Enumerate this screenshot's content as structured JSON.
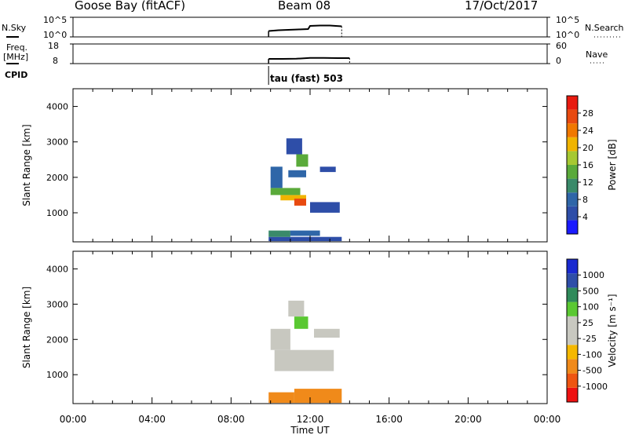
{
  "header": {
    "station": "Goose Bay (fitACF)",
    "beam": "Beam 08",
    "date": "17/Oct/2017"
  },
  "aux": {
    "nsky_label": "N.Sky",
    "nsky_tick_hi": "10^5",
    "nsky_tick_lo": "10^0",
    "nsearch_label": "N.Search",
    "freq_label_1": "Freq.",
    "freq_label_2": "[MHz]",
    "freq_ticks": [
      "18",
      "8"
    ],
    "nave_label": "Nave",
    "nave_ticks": [
      "60",
      "0"
    ],
    "cpid_label": "CPID",
    "cpid_value": "tau (fast) 503"
  },
  "colors": {
    "power_scale": [
      "#1a1aff",
      "#2e4ea8",
      "#2f66a8",
      "#3a8a6a",
      "#5aaa3a",
      "#a6c832",
      "#f0b400",
      "#f07800",
      "#e84a10",
      "#e81a10"
    ],
    "velocity_scale": [
      "#ee1111",
      "#ee5511",
      "#f08a1a",
      "#f5b800",
      "#c8c8c0",
      "#c8c8c0",
      "#5ac832",
      "#2f8a5a",
      "#2e4ea8",
      "#1a2ad0"
    ]
  },
  "chart_data": [
    {
      "type": "heatmap",
      "panel": "power",
      "ylabel": "Slant Range [km]",
      "yticks": [
        "4000",
        "3000",
        "2000",
        "1000"
      ],
      "ylim": [
        180,
        4500
      ],
      "xlim": [
        0,
        24
      ],
      "colorbar_label": "Power [dB]",
      "colorbar_ticks": [
        "28",
        "24",
        "20",
        "16",
        "12",
        "8",
        "4"
      ],
      "color_range": [
        0,
        32
      ],
      "cells": [
        {
          "t0": 9.9,
          "t1": 13.6,
          "r0": 200,
          "r1": 320,
          "value": 6
        },
        {
          "t0": 9.9,
          "t1": 11.0,
          "r0": 320,
          "r1": 500,
          "value": 10
        },
        {
          "t0": 11.0,
          "t1": 12.5,
          "r0": 350,
          "r1": 500,
          "value": 7
        },
        {
          "t0": 10.5,
          "t1": 11.8,
          "r0": 1350,
          "r1": 1500,
          "value": 20
        },
        {
          "t0": 11.2,
          "t1": 11.8,
          "r0": 1200,
          "r1": 1400,
          "value": 26
        },
        {
          "t0": 10.0,
          "t1": 11.5,
          "r0": 1500,
          "r1": 1700,
          "value": 14
        },
        {
          "t0": 12.0,
          "t1": 13.5,
          "r0": 1000,
          "r1": 1300,
          "value": 6
        },
        {
          "t0": 10.0,
          "t1": 10.6,
          "r0": 1700,
          "r1": 2300,
          "value": 8
        },
        {
          "t0": 10.9,
          "t1": 11.8,
          "r0": 2000,
          "r1": 2200,
          "value": 8
        },
        {
          "t0": 11.3,
          "t1": 11.9,
          "r0": 2300,
          "r1": 2650,
          "value": 13
        },
        {
          "t0": 10.8,
          "t1": 11.6,
          "r0": 2650,
          "r1": 3100,
          "value": 6
        },
        {
          "t0": 12.5,
          "t1": 13.3,
          "r0": 2150,
          "r1": 2300,
          "value": 6
        }
      ]
    },
    {
      "type": "heatmap",
      "panel": "velocity",
      "ylabel": "Slant Range [km]",
      "yticks": [
        "4000",
        "3000",
        "2000",
        "1000"
      ],
      "ylim": [
        180,
        4500
      ],
      "xlim": [
        0,
        24
      ],
      "xticks": [
        "00:00",
        "04:00",
        "08:00",
        "12:00",
        "16:00",
        "20:00",
        "00:00"
      ],
      "xlabel": "Time UT",
      "colorbar_label": "Velocity [m s⁻¹]",
      "colorbar_ticks": [
        "1000",
        "500",
        "100",
        "25",
        "-25",
        "-100",
        "-500",
        "-1000"
      ],
      "cells": [
        {
          "t0": 9.9,
          "t1": 11.2,
          "r0": 200,
          "r1": 500,
          "value": -300
        },
        {
          "t0": 11.2,
          "t1": 13.6,
          "r0": 200,
          "r1": 600,
          "value": -150
        },
        {
          "t0": 10.2,
          "t1": 13.2,
          "r0": 1100,
          "r1": 1700,
          "value": 0
        },
        {
          "t0": 10.0,
          "t1": 11.0,
          "r0": 1700,
          "r1": 2300,
          "value": 10
        },
        {
          "t0": 11.2,
          "t1": 11.9,
          "r0": 2300,
          "r1": 2650,
          "value": 80
        },
        {
          "t0": 10.9,
          "t1": 11.7,
          "r0": 2650,
          "r1": 3100,
          "value": 20
        },
        {
          "t0": 12.2,
          "t1": 13.5,
          "r0": 2050,
          "r1": 2300,
          "value": 0
        }
      ]
    },
    {
      "type": "line",
      "panel": "nsky",
      "x": [
        9.9,
        10.4,
        10.9,
        11.4,
        11.9,
        12.0,
        12.5,
        13.0,
        13.6
      ],
      "y": [
        1.5,
        1.7,
        1.8,
        1.9,
        2.0,
        2.8,
        2.9,
        2.9,
        2.7
      ],
      "ylim": [
        0,
        5
      ]
    },
    {
      "type": "line",
      "panel": "freq",
      "x": [
        9.9,
        10.6,
        11.3,
        12.0,
        12.7,
        13.4,
        14.0
      ],
      "y": [
        10.4,
        10.4,
        10.5,
        10.9,
        10.9,
        10.8,
        10.8
      ],
      "ylim": [
        8,
        18
      ]
    }
  ]
}
